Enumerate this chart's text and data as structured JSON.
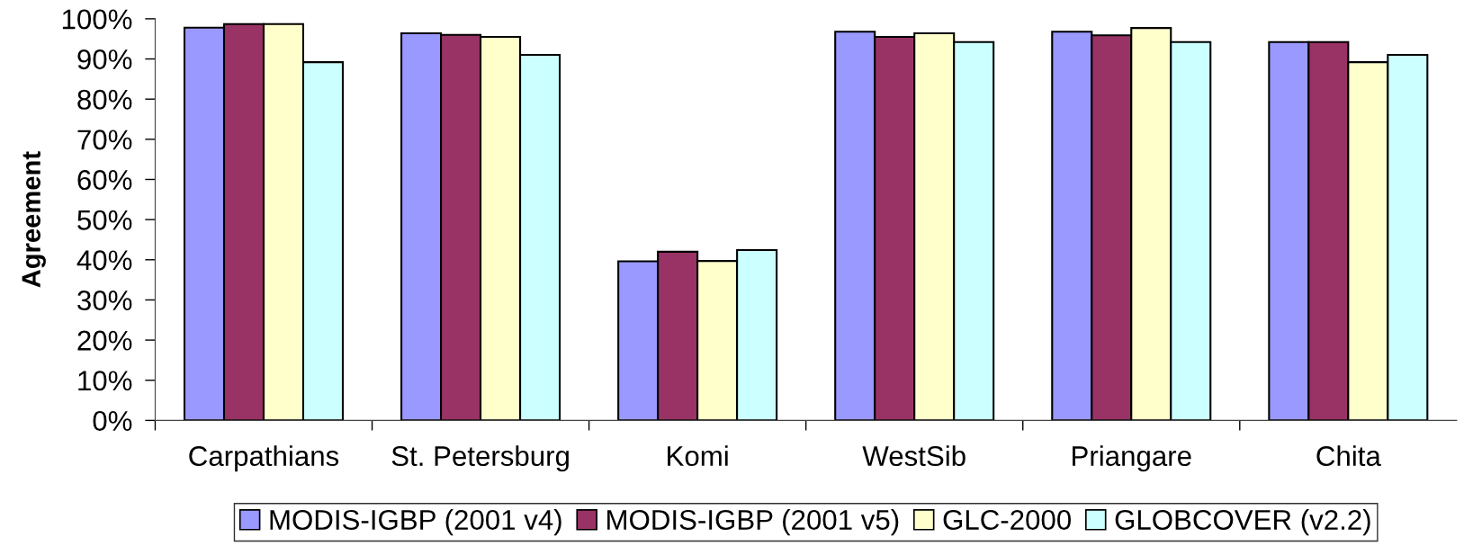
{
  "chart_data": {
    "type": "bar",
    "ylabel": "Agreement",
    "categories": [
      "Carpathians",
      "St. Petersburg",
      "Komi",
      "WestSib",
      "Priangare",
      "Chita"
    ],
    "series": [
      {
        "name": "MODIS-IGBP (2001 v4)",
        "color": "#9999ff",
        "values": [
          97.8,
          96.4,
          39.6,
          96.8,
          96.8,
          94.2
        ]
      },
      {
        "name": "MODIS-IGBP (2001 v5)",
        "color": "#993366",
        "values": [
          98.7,
          96.0,
          42.0,
          95.5,
          95.9,
          94.2
        ]
      },
      {
        "name": "GLC-2000",
        "color": "#ffffcc",
        "values": [
          98.7,
          95.5,
          39.7,
          96.4,
          97.7,
          89.2
        ]
      },
      {
        "name": "GLOBCOVER (v2.2)",
        "color": "#ccffff",
        "values": [
          89.2,
          91.0,
          42.4,
          94.2,
          94.2,
          91.0
        ]
      }
    ],
    "ylim": [
      0,
      100
    ],
    "yticks": [
      {
        "value": 0,
        "label": "0%"
      },
      {
        "value": 10,
        "label": "10%"
      },
      {
        "value": 20,
        "label": "20%"
      },
      {
        "value": 30,
        "label": "30%"
      },
      {
        "value": 40,
        "label": "40%"
      },
      {
        "value": 50,
        "label": "50%"
      },
      {
        "value": 60,
        "label": "60%"
      },
      {
        "value": 70,
        "label": "70%"
      },
      {
        "value": 80,
        "label": "80%"
      },
      {
        "value": 90,
        "label": "90%"
      },
      {
        "value": 100,
        "label": "100%"
      }
    ],
    "grid": false,
    "legend": "bottom"
  }
}
